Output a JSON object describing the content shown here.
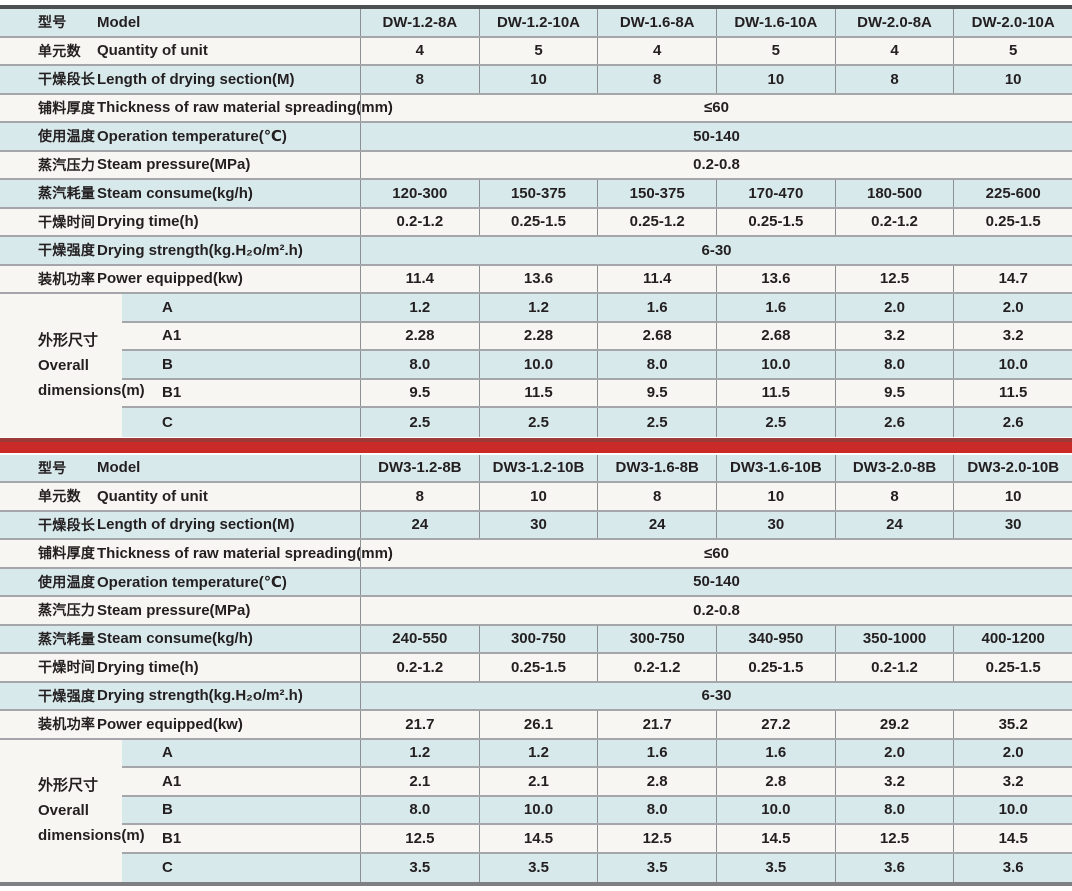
{
  "colors": {
    "row_blue": "#d8e9ec",
    "row_cream": "#f8f6f2",
    "divider_red": "#ca2a28",
    "divider_red_dark": "#9c3a37",
    "table_top_border": "#4e4f51",
    "table_bottom_border": "#7e8083",
    "grid_line": "#8d9093",
    "text": "#231f20"
  },
  "table_a": {
    "rows": [
      {
        "zh": "型号",
        "en": "Model",
        "values": [
          "DW-1.2-8A",
          "DW-1.2-10A",
          "DW-1.6-8A",
          "DW-1.6-10A",
          "DW-2.0-8A",
          "DW-2.0-10A"
        ]
      },
      {
        "zh": "单元数",
        "en": "Quantity of unit",
        "values": [
          "4",
          "5",
          "4",
          "5",
          "4",
          "5"
        ]
      },
      {
        "zh": "干燥段长",
        "en": "Length of drying section(M)",
        "values": [
          "8",
          "10",
          "8",
          "10",
          "8",
          "10"
        ]
      },
      {
        "zh": "铺料厚度",
        "en": "Thickness of raw material spreading(mm)",
        "merged": "≤60"
      },
      {
        "zh": "使用温度",
        "en": "Operation temperature(℃)",
        "merged": "50-140"
      },
      {
        "zh": "蒸汽压力",
        "en": "Steam pressure(MPa)",
        "merged": "0.2-0.8"
      },
      {
        "zh": "蒸汽耗量",
        "en": "Steam consume(kg/h)",
        "values": [
          "120-300",
          "150-375",
          "150-375",
          "170-470",
          "180-500",
          "225-600"
        ]
      },
      {
        "zh": "干燥时间",
        "en": "Drying time(h)",
        "values": [
          "0.2-1.2",
          "0.25-1.5",
          "0.25-1.2",
          "0.25-1.5",
          "0.2-1.2",
          "0.25-1.5"
        ]
      },
      {
        "zh": "干燥强度",
        "en": "Drying strength(kg.H₂o/m².h)",
        "merged": "6-30"
      },
      {
        "zh": "装机功率",
        "en": "Power equipped(kw)",
        "values": [
          "11.4",
          "13.6",
          "11.4",
          "13.6",
          "12.5",
          "14.7"
        ]
      }
    ],
    "dims": {
      "zh": "外形尺寸",
      "en1": "Overall",
      "en2": "dimensions(m)",
      "rows": [
        {
          "sub": "A",
          "values": [
            "1.2",
            "1.2",
            "1.6",
            "1.6",
            "2.0",
            "2.0"
          ]
        },
        {
          "sub": "A1",
          "values": [
            "2.28",
            "2.28",
            "2.68",
            "2.68",
            "3.2",
            "3.2"
          ]
        },
        {
          "sub": "B",
          "values": [
            "8.0",
            "10.0",
            "8.0",
            "10.0",
            "8.0",
            "10.0"
          ]
        },
        {
          "sub": "B1",
          "values": [
            "9.5",
            "11.5",
            "9.5",
            "11.5",
            "9.5",
            "11.5"
          ]
        },
        {
          "sub": "C",
          "values": [
            "2.5",
            "2.5",
            "2.5",
            "2.5",
            "2.6",
            "2.6"
          ]
        }
      ]
    }
  },
  "table_b": {
    "rows": [
      {
        "zh": "型号",
        "en": "Model",
        "values": [
          "DW3-1.2-8B",
          "DW3-1.2-10B",
          "DW3-1.6-8B",
          "DW3-1.6-10B",
          "DW3-2.0-8B",
          "DW3-2.0-10B"
        ]
      },
      {
        "zh": "单元数",
        "en": "Quantity of unit",
        "values": [
          "8",
          "10",
          "8",
          "10",
          "8",
          "10"
        ]
      },
      {
        "zh": "干燥段长",
        "en": "Length of drying section(M)",
        "values": [
          "24",
          "30",
          "24",
          "30",
          "24",
          "30"
        ]
      },
      {
        "zh": "铺料厚度",
        "en": "Thickness of raw material spreading(mm)",
        "merged": "≤60"
      },
      {
        "zh": "使用温度",
        "en": "Operation temperature(℃)",
        "merged": "50-140"
      },
      {
        "zh": "蒸汽压力",
        "en": "Steam pressure(MPa)",
        "merged": "0.2-0.8"
      },
      {
        "zh": "蒸汽耗量",
        "en": "Steam consume(kg/h)",
        "values": [
          "240-550",
          "300-750",
          "300-750",
          "340-950",
          "350-1000",
          "400-1200"
        ]
      },
      {
        "zh": "干燥时间",
        "en": "Drying time(h)",
        "values": [
          "0.2-1.2",
          "0.25-1.5",
          "0.2-1.2",
          "0.25-1.5",
          "0.2-1.2",
          "0.25-1.5"
        ]
      },
      {
        "zh": "干燥强度",
        "en": "Drying strength(kg.H₂o/m².h)",
        "merged": "6-30"
      },
      {
        "zh": "装机功率",
        "en": "Power equipped(kw)",
        "values": [
          "21.7",
          "26.1",
          "21.7",
          "27.2",
          "29.2",
          "35.2"
        ]
      }
    ],
    "dims": {
      "zh": "外形尺寸",
      "en1": "Overall",
      "en2": "dimensions(m)",
      "rows": [
        {
          "sub": "A",
          "values": [
            "1.2",
            "1.2",
            "1.6",
            "1.6",
            "2.0",
            "2.0"
          ]
        },
        {
          "sub": "A1",
          "values": [
            "2.1",
            "2.1",
            "2.8",
            "2.8",
            "3.2",
            "3.2"
          ]
        },
        {
          "sub": "B",
          "values": [
            "8.0",
            "10.0",
            "8.0",
            "10.0",
            "8.0",
            "10.0"
          ]
        },
        {
          "sub": "B1",
          "values": [
            "12.5",
            "14.5",
            "12.5",
            "14.5",
            "12.5",
            "14.5"
          ]
        },
        {
          "sub": "C",
          "values": [
            "3.5",
            "3.5",
            "3.5",
            "3.5",
            "3.6",
            "3.6"
          ]
        }
      ]
    }
  }
}
